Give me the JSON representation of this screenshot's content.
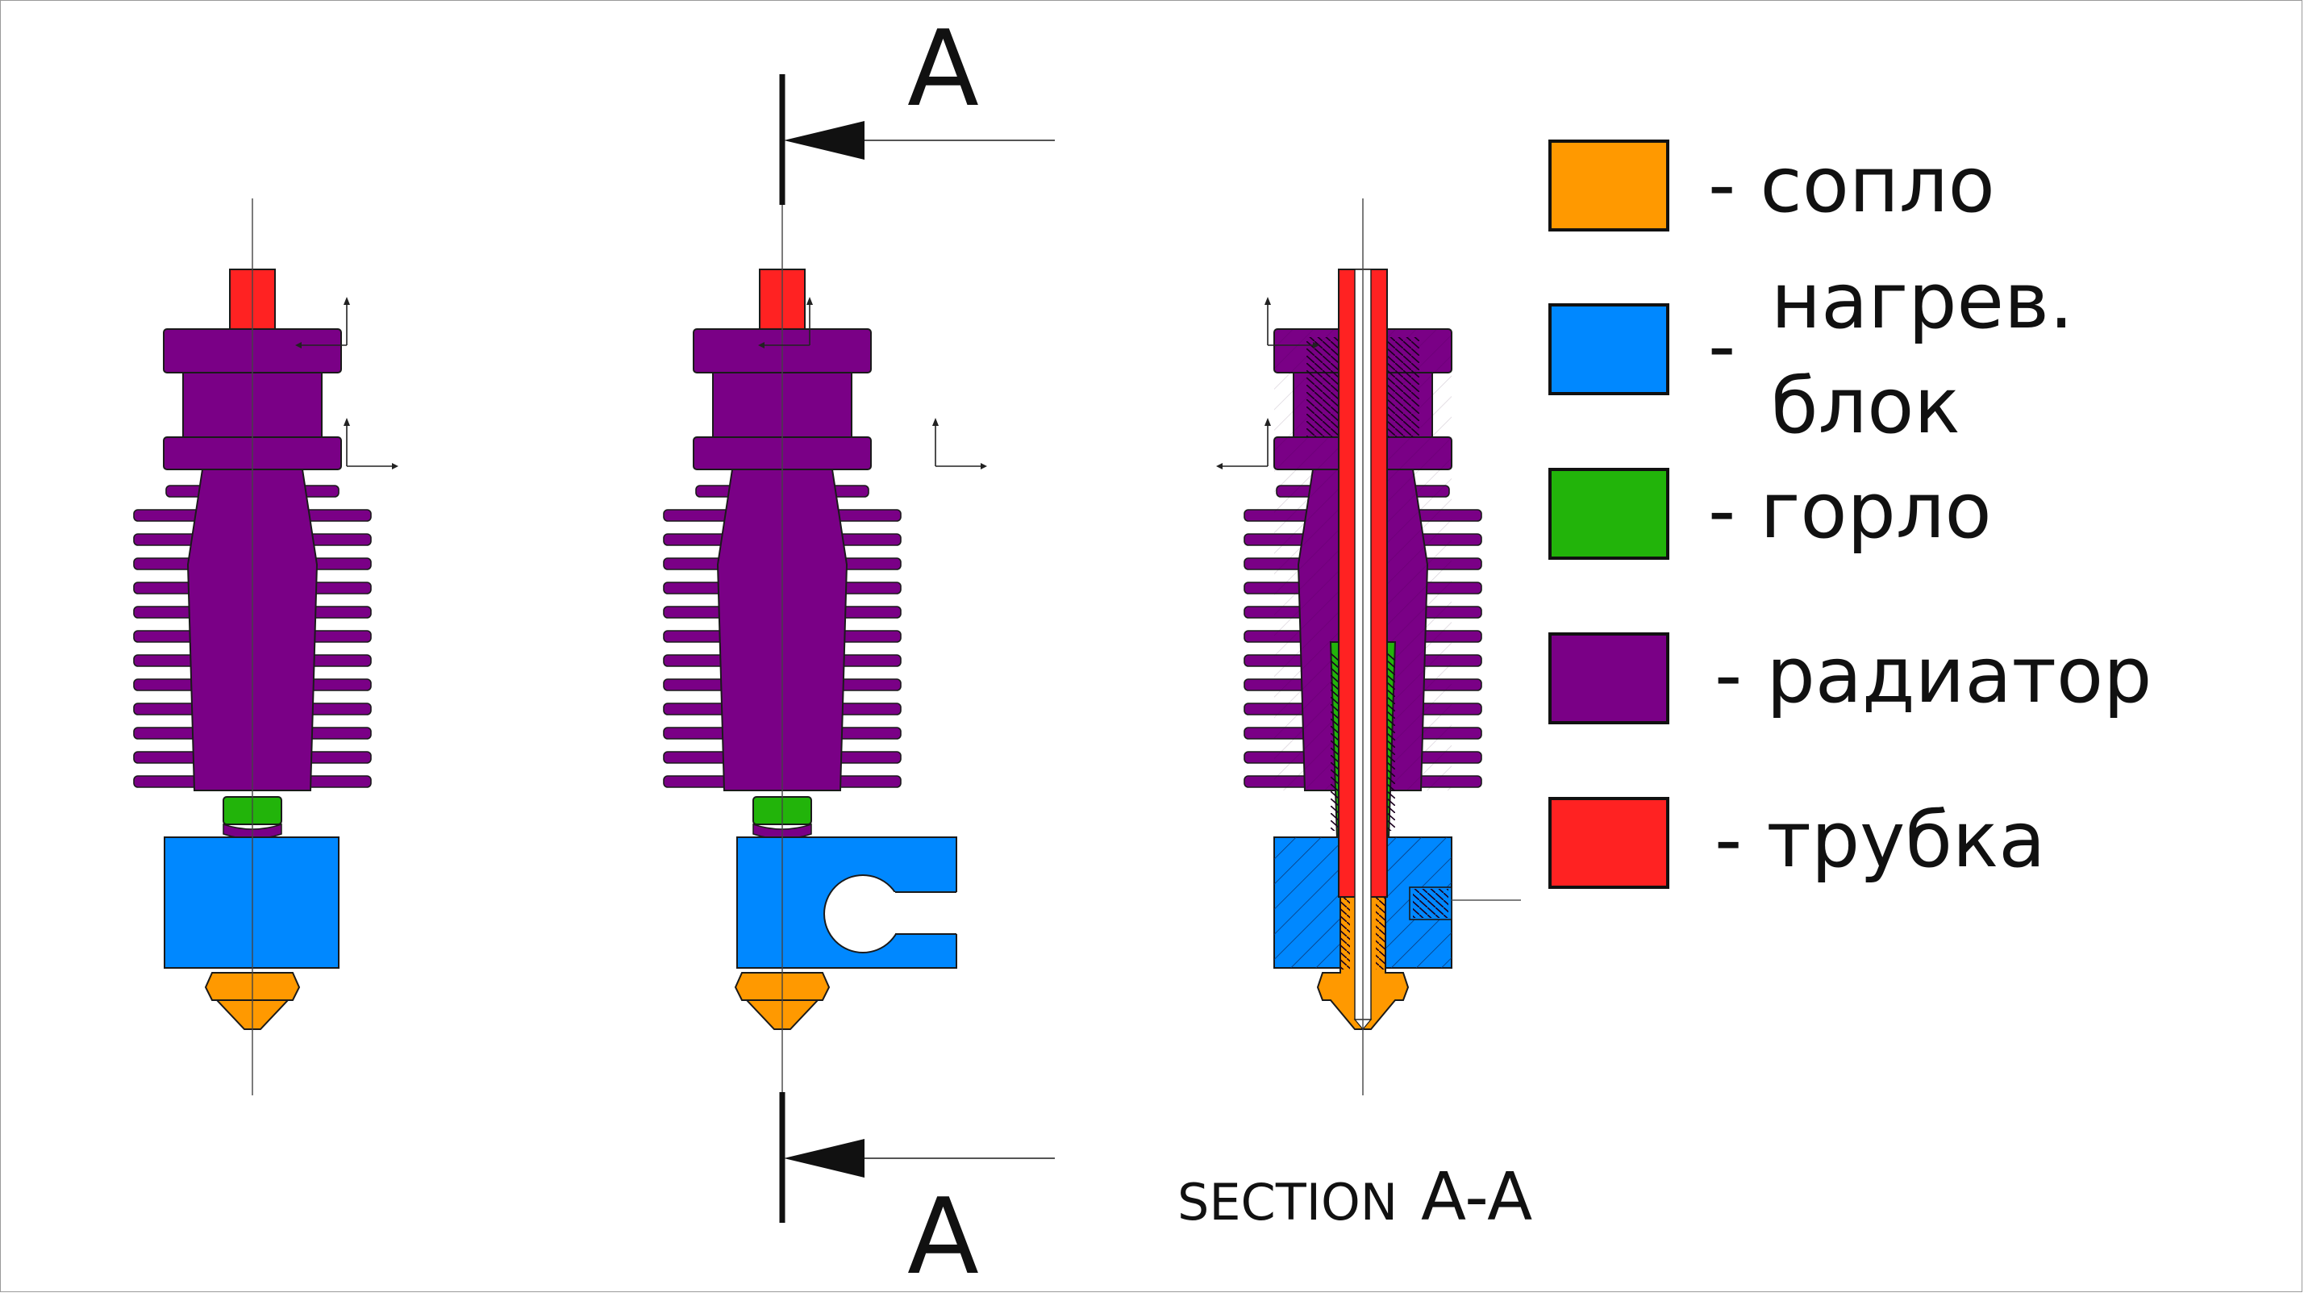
{
  "colors": {
    "nozzle": "#FF9900",
    "heat_block": "#0088FF",
    "throat": "#22B40A",
    "heatsink": "#7A0086",
    "tube": "#FF2222",
    "line": "#111111"
  },
  "section_marks": {
    "top_letter": "A",
    "bottom_letter": "A"
  },
  "section_caption": {
    "prefix": "SECTION",
    "name": "A-A"
  },
  "legend": {
    "items": [
      {
        "key": "nozzle",
        "text": "- сопло",
        "color": "#FF9900"
      },
      {
        "key": "heat_block",
        "dash": "-",
        "line1": "нагрев.",
        "line2": "блок",
        "color": "#0088FF"
      },
      {
        "key": "throat",
        "text": "- горло",
        "color": "#22B40A"
      },
      {
        "key": "heatsink",
        "text": "- радиатор",
        "color": "#7A0086"
      },
      {
        "key": "tube",
        "text": "- трубка",
        "color": "#FF2222"
      }
    ]
  }
}
